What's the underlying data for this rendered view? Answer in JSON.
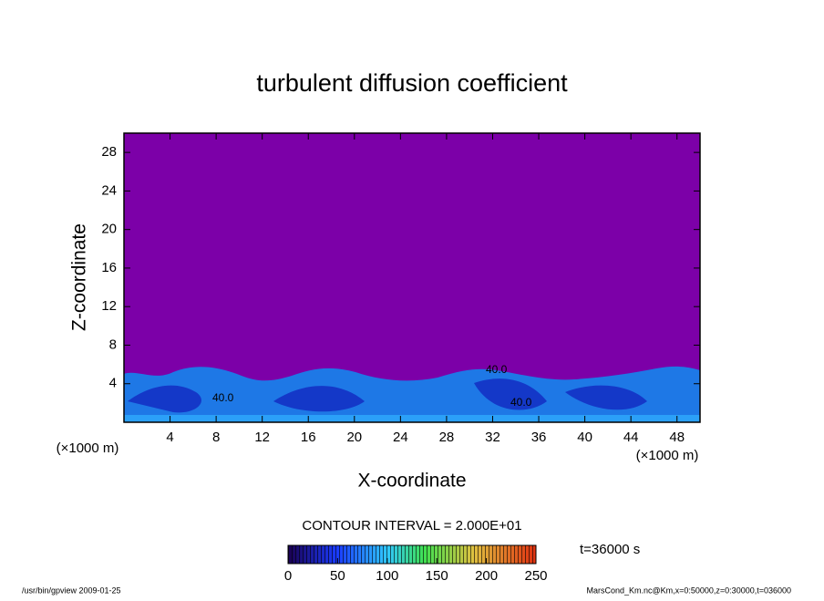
{
  "chart_data": {
    "type": "contour",
    "title": "turbulent diffusion coefficient",
    "xlabel": "X-coordinate",
    "ylabel": "Z-coordinate",
    "xunit": "(×1000 m)",
    "yunit": "(×1000 m)",
    "xlim": [
      0,
      50
    ],
    "xticks": [
      4,
      8,
      12,
      16,
      20,
      24,
      28,
      32,
      36,
      40,
      44,
      48
    ],
    "ylim": [
      0,
      30
    ],
    "yticks": [
      4,
      8,
      12,
      16,
      20,
      24,
      28
    ],
    "contour_labels": [
      "40.0",
      "40.0",
      "40.0"
    ],
    "colorbar": {
      "title": "CONTOUR INTERVAL = 2.000E+01",
      "lim": [
        0,
        250
      ],
      "ticks": [
        0,
        50,
        100,
        150,
        200,
        250
      ]
    },
    "time_label": "t=36000 s",
    "footer_left": "/usr/bin/gpview   2009-01-25",
    "footer_right": "MarsCond_Km.nc@Km,x=0:50000,z=0:30000,t=036000"
  }
}
